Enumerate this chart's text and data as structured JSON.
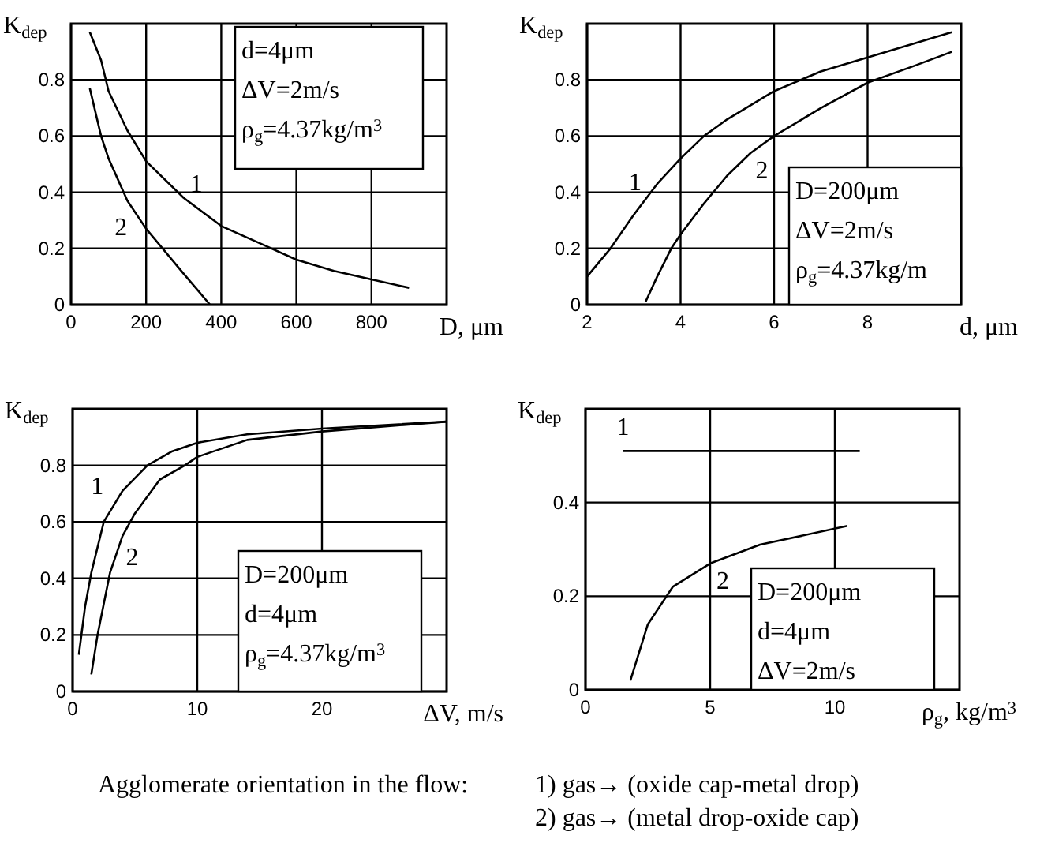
{
  "chart_data": [
    {
      "type": "line",
      "xlabel": "D, μm",
      "ylabel": "K$_{dep}$",
      "xlim": [
        0,
        1000
      ],
      "ylim": [
        0,
        1
      ],
      "xticks": [
        0,
        200,
        400,
        600,
        800
      ],
      "yticks": [
        0,
        0.2,
        0.4,
        0.6,
        0.8
      ],
      "grid": true,
      "marker": "none",
      "line_style": "solid",
      "annotations": [
        "d=4μm",
        "ΔV=2m/s",
        "ρ$_{g}$=4.37kg/m$^{3}$"
      ],
      "series": [
        {
          "name": "1",
          "color": "#000000",
          "x": [
            50,
            80,
            100,
            150,
            200,
            300,
            400,
            500,
            600,
            700,
            800,
            900
          ],
          "values": [
            0.97,
            0.87,
            0.76,
            0.62,
            0.51,
            0.38,
            0.28,
            0.22,
            0.16,
            0.12,
            0.09,
            0.06
          ]
        },
        {
          "name": "2",
          "color": "#000000",
          "x": [
            50,
            80,
            100,
            150,
            200,
            250,
            300,
            370
          ],
          "values": [
            0.77,
            0.6,
            0.52,
            0.37,
            0.27,
            0.19,
            0.11,
            0
          ]
        }
      ]
    },
    {
      "type": "line",
      "xlabel": "d, μm",
      "ylabel": "K$_{dep}$",
      "xlim": [
        2,
        10
      ],
      "ylim": [
        0,
        1
      ],
      "xticks": [
        2,
        4,
        6,
        8
      ],
      "yticks": [
        0,
        0.2,
        0.4,
        0.6,
        0.8
      ],
      "grid": true,
      "marker": "none",
      "line_style": "solid",
      "annotations": [
        "D=200μm",
        "ΔV=2m/s",
        "ρ$_{g}$=4.37kg/m"
      ],
      "series": [
        {
          "name": "1",
          "color": "#000000",
          "x": [
            2,
            2.5,
            3,
            3.5,
            4,
            4.5,
            5,
            6,
            7,
            8,
            9,
            9.8
          ],
          "values": [
            0.1,
            0.2,
            0.32,
            0.43,
            0.52,
            0.6,
            0.66,
            0.76,
            0.83,
            0.88,
            0.93,
            0.97
          ]
        },
        {
          "name": "2",
          "color": "#000000",
          "x": [
            3.25,
            3.5,
            3.8,
            4,
            4.5,
            5,
            5.5,
            6,
            7,
            8,
            9,
            9.8
          ],
          "values": [
            0.01,
            0.1,
            0.2,
            0.25,
            0.36,
            0.46,
            0.54,
            0.6,
            0.7,
            0.79,
            0.85,
            0.9
          ]
        }
      ]
    },
    {
      "type": "line",
      "xlabel": "ΔV, m/s",
      "ylabel": "K$_{dep}$",
      "xlim": [
        0,
        30
      ],
      "ylim": [
        0,
        1
      ],
      "xticks": [
        0,
        10,
        20
      ],
      "yticks": [
        0,
        0.2,
        0.4,
        0.6,
        0.8
      ],
      "grid": true,
      "marker": "none",
      "line_style": "solid",
      "annotations": [
        "D=200μm",
        "d=4μm",
        "ρ$_{g}$=4.37kg/m$^{3}$"
      ],
      "series": [
        {
          "name": "1",
          "color": "#000000",
          "x": [
            0.5,
            1,
            1.5,
            2.5,
            4,
            6,
            8,
            10,
            14,
            20,
            30
          ],
          "values": [
            0.13,
            0.3,
            0.42,
            0.6,
            0.71,
            0.8,
            0.85,
            0.88,
            0.91,
            0.93,
            0.955
          ]
        },
        {
          "name": "2",
          "color": "#000000",
          "x": [
            1.5,
            2,
            3,
            4,
            5,
            7,
            9,
            10,
            14,
            20,
            30
          ],
          "values": [
            0.06,
            0.2,
            0.42,
            0.55,
            0.63,
            0.75,
            0.8,
            0.83,
            0.89,
            0.92,
            0.955
          ]
        }
      ]
    },
    {
      "type": "line",
      "xlabel": "ρ$_{g}$, kg/m$^{3}$",
      "ylabel": "K$_{dep}$",
      "xlim": [
        0,
        15
      ],
      "ylim": [
        0,
        0.6
      ],
      "xticks": [
        0,
        5,
        10
      ],
      "yticks": [
        0,
        0.2,
        0.4
      ],
      "grid": true,
      "marker": "none",
      "line_style": "solid",
      "annotations": [
        "D=200μm",
        "d=4μm",
        "ΔV=2m/s"
      ],
      "series": [
        {
          "name": "1",
          "color": "#000000",
          "x": [
            1.5,
            11
          ],
          "values": [
            0.51,
            0.51
          ]
        },
        {
          "name": "2",
          "color": "#000000",
          "x": [
            1.8,
            2.5,
            3.5,
            5,
            7,
            10.5
          ],
          "values": [
            0.02,
            0.14,
            0.22,
            0.27,
            0.31,
            0.35
          ]
        }
      ]
    },
    {
      "type": "other",
      "annotations": [
        "Agglomerate orientation in the flow:",
        "1)  gas→ (oxide cap-metal drop)",
        "2)  gas→ (metal drop-oxide cap)"
      ]
    }
  ]
}
